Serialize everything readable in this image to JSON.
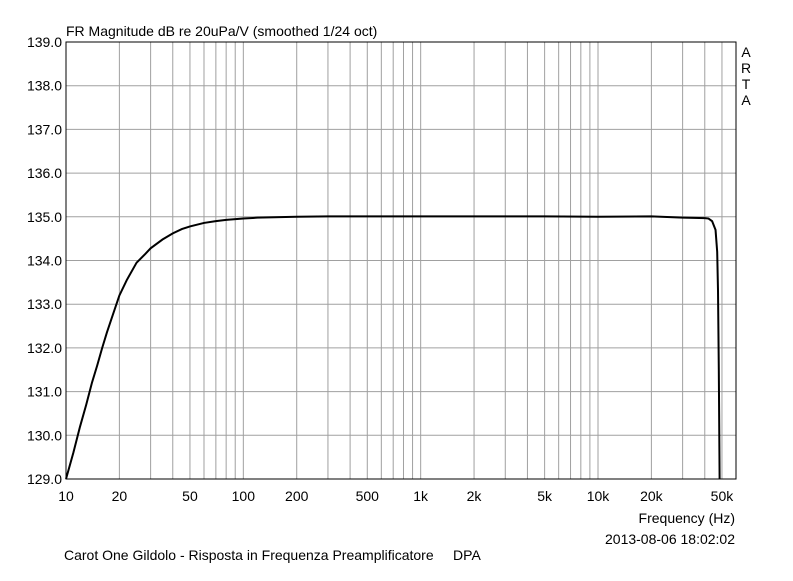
{
  "chart_data": {
    "type": "line",
    "title": "FR Magnitude dB re 20uPa/V (smoothed 1/24 oct)",
    "xlabel": "Frequency (Hz)",
    "x_scale": "log",
    "xlim": [
      10,
      60000
    ],
    "ylim": [
      129.0,
      139.0
    ],
    "y_ticks": [
      129.0,
      130.0,
      131.0,
      132.0,
      133.0,
      134.0,
      135.0,
      136.0,
      137.0,
      138.0,
      139.0
    ],
    "y_tick_labels": [
      "129.0",
      "130.0",
      "131.0",
      "132.0",
      "133.0",
      "134.0",
      "135.0",
      "136.0",
      "137.0",
      "138.0",
      "139.0"
    ],
    "x_ticks": [
      10,
      20,
      50,
      100,
      200,
      500,
      1000,
      2000,
      5000,
      10000,
      20000,
      50000
    ],
    "x_tick_labels": [
      "10",
      "20",
      "50",
      "100",
      "200",
      "500",
      "1k",
      "2k",
      "5k",
      "10k",
      "20k",
      "50k"
    ],
    "grid": true,
    "series": [
      {
        "x": [
          10,
          11,
          12,
          13,
          14,
          15,
          16,
          17,
          18,
          20,
          22,
          25,
          28,
          30,
          35,
          40,
          45,
          50,
          60,
          70,
          80,
          100,
          120,
          150,
          200,
          300,
          500,
          1000,
          2000,
          5000,
          10000,
          20000,
          30000,
          40000,
          42000,
          44000,
          46000,
          47000,
          47500,
          48000,
          48500
        ],
        "y": [
          129.0,
          129.6,
          130.2,
          130.7,
          131.2,
          131.6,
          132.0,
          132.35,
          132.65,
          133.2,
          133.55,
          133.95,
          134.15,
          134.28,
          134.48,
          134.62,
          134.72,
          134.78,
          134.86,
          134.9,
          134.93,
          134.96,
          134.98,
          134.99,
          135.0,
          135.01,
          135.01,
          135.01,
          135.01,
          135.01,
          135.0,
          135.01,
          134.98,
          134.97,
          134.96,
          134.9,
          134.7,
          134.2,
          133.3,
          131.5,
          129.0
        ]
      }
    ]
  },
  "branding": [
    "A",
    "R",
    "T",
    "A"
  ],
  "footer": {
    "timestamp": "2013-08-06  18:02:02",
    "caption": "Carot One Gildolo - Risposta in Frequenza Preamplificatore     DPA"
  },
  "colors": {
    "line": "#000000",
    "grid": "#a0a0a0",
    "frame": "#000000"
  }
}
